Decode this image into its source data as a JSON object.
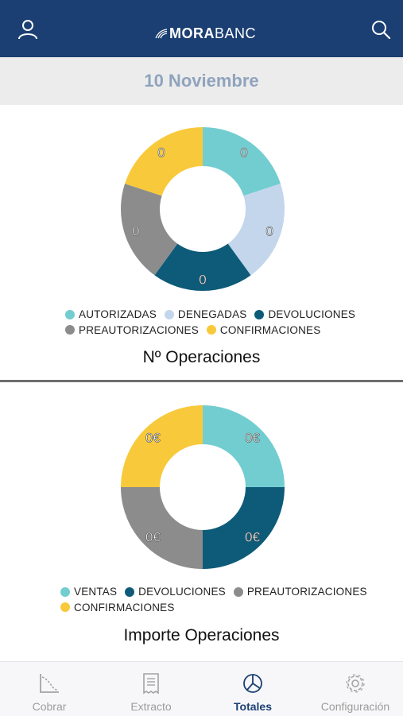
{
  "header": {
    "logo_bold": "MORA",
    "logo_light": "BANC",
    "user_icon": "user-icon",
    "search_icon": "search-icon",
    "color": "#1b3f73"
  },
  "date": "10 Noviembre",
  "colors": {
    "autorizadas": "#72cdd1",
    "denegadas": "#c3d6ec",
    "devoluciones": "#0d5b79",
    "preautorizaciones": "#8c8c8c",
    "confirmaciones": "#f8c93a"
  },
  "chart_data": [
    {
      "type": "pie",
      "title": "Nº Operaciones",
      "labels": [
        "AUTORIZADAS",
        "DENEGADAS",
        "DEVOLUCIONES",
        "PREAUTORIZACIONES",
        "CONFIRMACIONES"
      ],
      "values": [
        0,
        0,
        0,
        0,
        0
      ],
      "value_labels": [
        "0",
        "0",
        "0",
        "0",
        "0"
      ],
      "legend": "bottom"
    },
    {
      "type": "pie",
      "title": "Importe Operaciones",
      "labels": [
        "VENTAS",
        "DEVOLUCIONES",
        "PREAUTORIZACIONES",
        "CONFIRMACIONES"
      ],
      "values": [
        0,
        0,
        0,
        0
      ],
      "value_labels": [
        "0€",
        "0€",
        "0€",
        "0€"
      ],
      "legend": "bottom"
    }
  ],
  "tabs": [
    {
      "label": "Cobrar",
      "icon": "chart-curve-icon",
      "active": false
    },
    {
      "label": "Extracto",
      "icon": "receipt-icon",
      "active": false
    },
    {
      "label": "Totales",
      "icon": "pie-chart-icon",
      "active": true
    },
    {
      "label": "Configuración",
      "icon": "gear-icon",
      "active": false
    }
  ]
}
